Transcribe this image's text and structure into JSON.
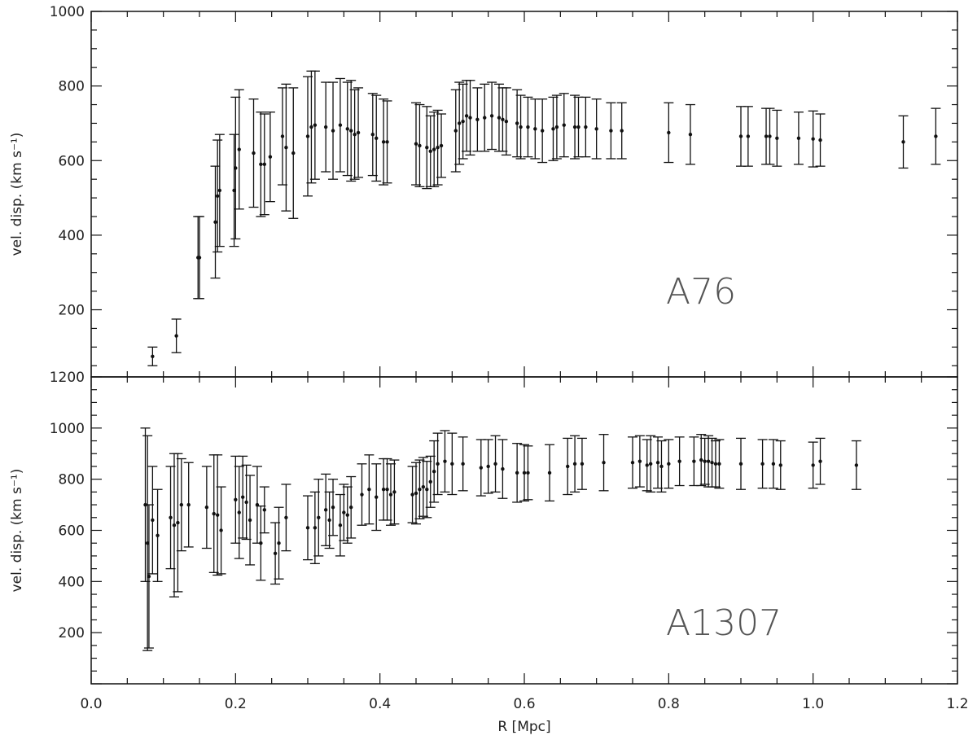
{
  "chart_data": [
    {
      "type": "scatter",
      "panel_label": "A76",
      "ylabel": "vel. disp. (km s⁻¹)",
      "xlabel": "",
      "xlim": [
        0.0,
        1.2
      ],
      "ylim": [
        20,
        1000
      ],
      "y_ticks": [
        200,
        400,
        600,
        800,
        1000
      ],
      "y_tick_labels": [
        "200",
        "400",
        "600",
        "800",
        "1000"
      ],
      "grid": false,
      "x": [
        0.085,
        0.118,
        0.148,
        0.15,
        0.172,
        0.175,
        0.178,
        0.198,
        0.2,
        0.205,
        0.225,
        0.235,
        0.24,
        0.248,
        0.265,
        0.27,
        0.28,
        0.3,
        0.305,
        0.31,
        0.325,
        0.335,
        0.345,
        0.355,
        0.36,
        0.365,
        0.37,
        0.39,
        0.395,
        0.405,
        0.41,
        0.45,
        0.455,
        0.465,
        0.47,
        0.475,
        0.48,
        0.485,
        0.505,
        0.51,
        0.515,
        0.52,
        0.525,
        0.535,
        0.545,
        0.555,
        0.565,
        0.57,
        0.575,
        0.59,
        0.595,
        0.605,
        0.615,
        0.625,
        0.64,
        0.645,
        0.655,
        0.67,
        0.675,
        0.685,
        0.7,
        0.72,
        0.735,
        0.8,
        0.83,
        0.9,
        0.91,
        0.935,
        0.94,
        0.95,
        0.98,
        1.0,
        1.01,
        1.125,
        1.17
      ],
      "y": [
        75,
        130,
        340,
        340,
        435,
        505,
        520,
        520,
        580,
        630,
        620,
        590,
        590,
        610,
        665,
        635,
        620,
        665,
        690,
        695,
        690,
        680,
        695,
        685,
        680,
        670,
        675,
        670,
        660,
        650,
        650,
        645,
        640,
        635,
        625,
        630,
        635,
        640,
        680,
        700,
        705,
        720,
        715,
        710,
        715,
        720,
        715,
        710,
        705,
        700,
        690,
        690,
        685,
        680,
        685,
        690,
        695,
        690,
        690,
        690,
        685,
        680,
        680,
        675,
        670,
        665,
        665,
        665,
        665,
        660,
        660,
        658,
        655,
        650,
        665
      ],
      "yerr": [
        25,
        45,
        110,
        110,
        150,
        150,
        150,
        150,
        190,
        160,
        145,
        140,
        135,
        120,
        130,
        170,
        175,
        160,
        150,
        145,
        120,
        130,
        125,
        125,
        135,
        120,
        120,
        110,
        115,
        115,
        110,
        110,
        110,
        110,
        95,
        100,
        100,
        85,
        110,
        110,
        100,
        95,
        100,
        85,
        90,
        90,
        90,
        85,
        90,
        90,
        85,
        80,
        80,
        85,
        85,
        85,
        85,
        85,
        80,
        80,
        80,
        75,
        75,
        80,
        80,
        80,
        80,
        75,
        75,
        75,
        70,
        75,
        70,
        70,
        75
      ]
    },
    {
      "type": "scatter",
      "panel_label": "A1307",
      "ylabel": "vel. disp. (km s⁻¹)",
      "xlabel": "R [Mpc]",
      "xlim": [
        0.0,
        1.2
      ],
      "ylim": [
        0,
        1200
      ],
      "y_ticks": [
        200,
        400,
        600,
        800,
        1000,
        1200
      ],
      "y_tick_labels": [
        "200",
        "400",
        "600",
        "800",
        "1000",
        "1200"
      ],
      "x_ticks": [
        0.0,
        0.2,
        0.4,
        0.6,
        0.8,
        1.0,
        1.2
      ],
      "x_tick_labels": [
        "0.0",
        "0.2",
        "0.4",
        "0.6",
        "0.8",
        "1.0",
        "1.2"
      ],
      "grid": false,
      "x": [
        0.075,
        0.078,
        0.08,
        0.085,
        0.092,
        0.11,
        0.115,
        0.12,
        0.125,
        0.135,
        0.16,
        0.17,
        0.175,
        0.18,
        0.2,
        0.205,
        0.21,
        0.215,
        0.22,
        0.23,
        0.235,
        0.24,
        0.255,
        0.26,
        0.27,
        0.3,
        0.31,
        0.315,
        0.325,
        0.33,
        0.335,
        0.345,
        0.35,
        0.355,
        0.36,
        0.375,
        0.385,
        0.395,
        0.405,
        0.41,
        0.415,
        0.42,
        0.445,
        0.45,
        0.455,
        0.46,
        0.465,
        0.47,
        0.475,
        0.48,
        0.49,
        0.5,
        0.515,
        0.54,
        0.55,
        0.56,
        0.57,
        0.59,
        0.6,
        0.605,
        0.635,
        0.66,
        0.67,
        0.68,
        0.71,
        0.75,
        0.76,
        0.77,
        0.775,
        0.785,
        0.79,
        0.8,
        0.815,
        0.835,
        0.845,
        0.85,
        0.855,
        0.86,
        0.865,
        0.87,
        0.9,
        0.93,
        0.945,
        0.955,
        1.0,
        1.01,
        1.06
      ],
      "y": [
        700,
        550,
        420,
        640,
        580,
        650,
        620,
        630,
        700,
        700,
        690,
        665,
        660,
        600,
        720,
        670,
        730,
        710,
        640,
        700,
        550,
        680,
        510,
        550,
        650,
        610,
        610,
        650,
        680,
        640,
        690,
        620,
        670,
        660,
        690,
        740,
        760,
        730,
        760,
        760,
        740,
        750,
        740,
        745,
        760,
        770,
        760,
        790,
        830,
        860,
        870,
        860,
        860,
        845,
        850,
        860,
        840,
        825,
        825,
        825,
        825,
        850,
        860,
        860,
        865,
        865,
        870,
        855,
        860,
        865,
        850,
        860,
        870,
        870,
        875,
        870,
        870,
        865,
        860,
        860,
        860,
        860,
        860,
        855,
        855,
        870,
        855
      ],
      "yerr": [
        300,
        420,
        280,
        210,
        180,
        200,
        280,
        270,
        180,
        165,
        160,
        230,
        235,
        170,
        170,
        180,
        160,
        145,
        175,
        150,
        145,
        90,
        120,
        140,
        130,
        125,
        140,
        150,
        140,
        110,
        110,
        120,
        110,
        110,
        120,
        120,
        135,
        130,
        120,
        120,
        120,
        125,
        110,
        120,
        115,
        115,
        110,
        100,
        120,
        120,
        120,
        120,
        105,
        110,
        105,
        110,
        115,
        115,
        110,
        105,
        110,
        110,
        110,
        100,
        110,
        100,
        100,
        100,
        110,
        100,
        100,
        95,
        95,
        95,
        100,
        90,
        100,
        95,
        90,
        95,
        100,
        95,
        95,
        95,
        90,
        90,
        95
      ]
    }
  ]
}
